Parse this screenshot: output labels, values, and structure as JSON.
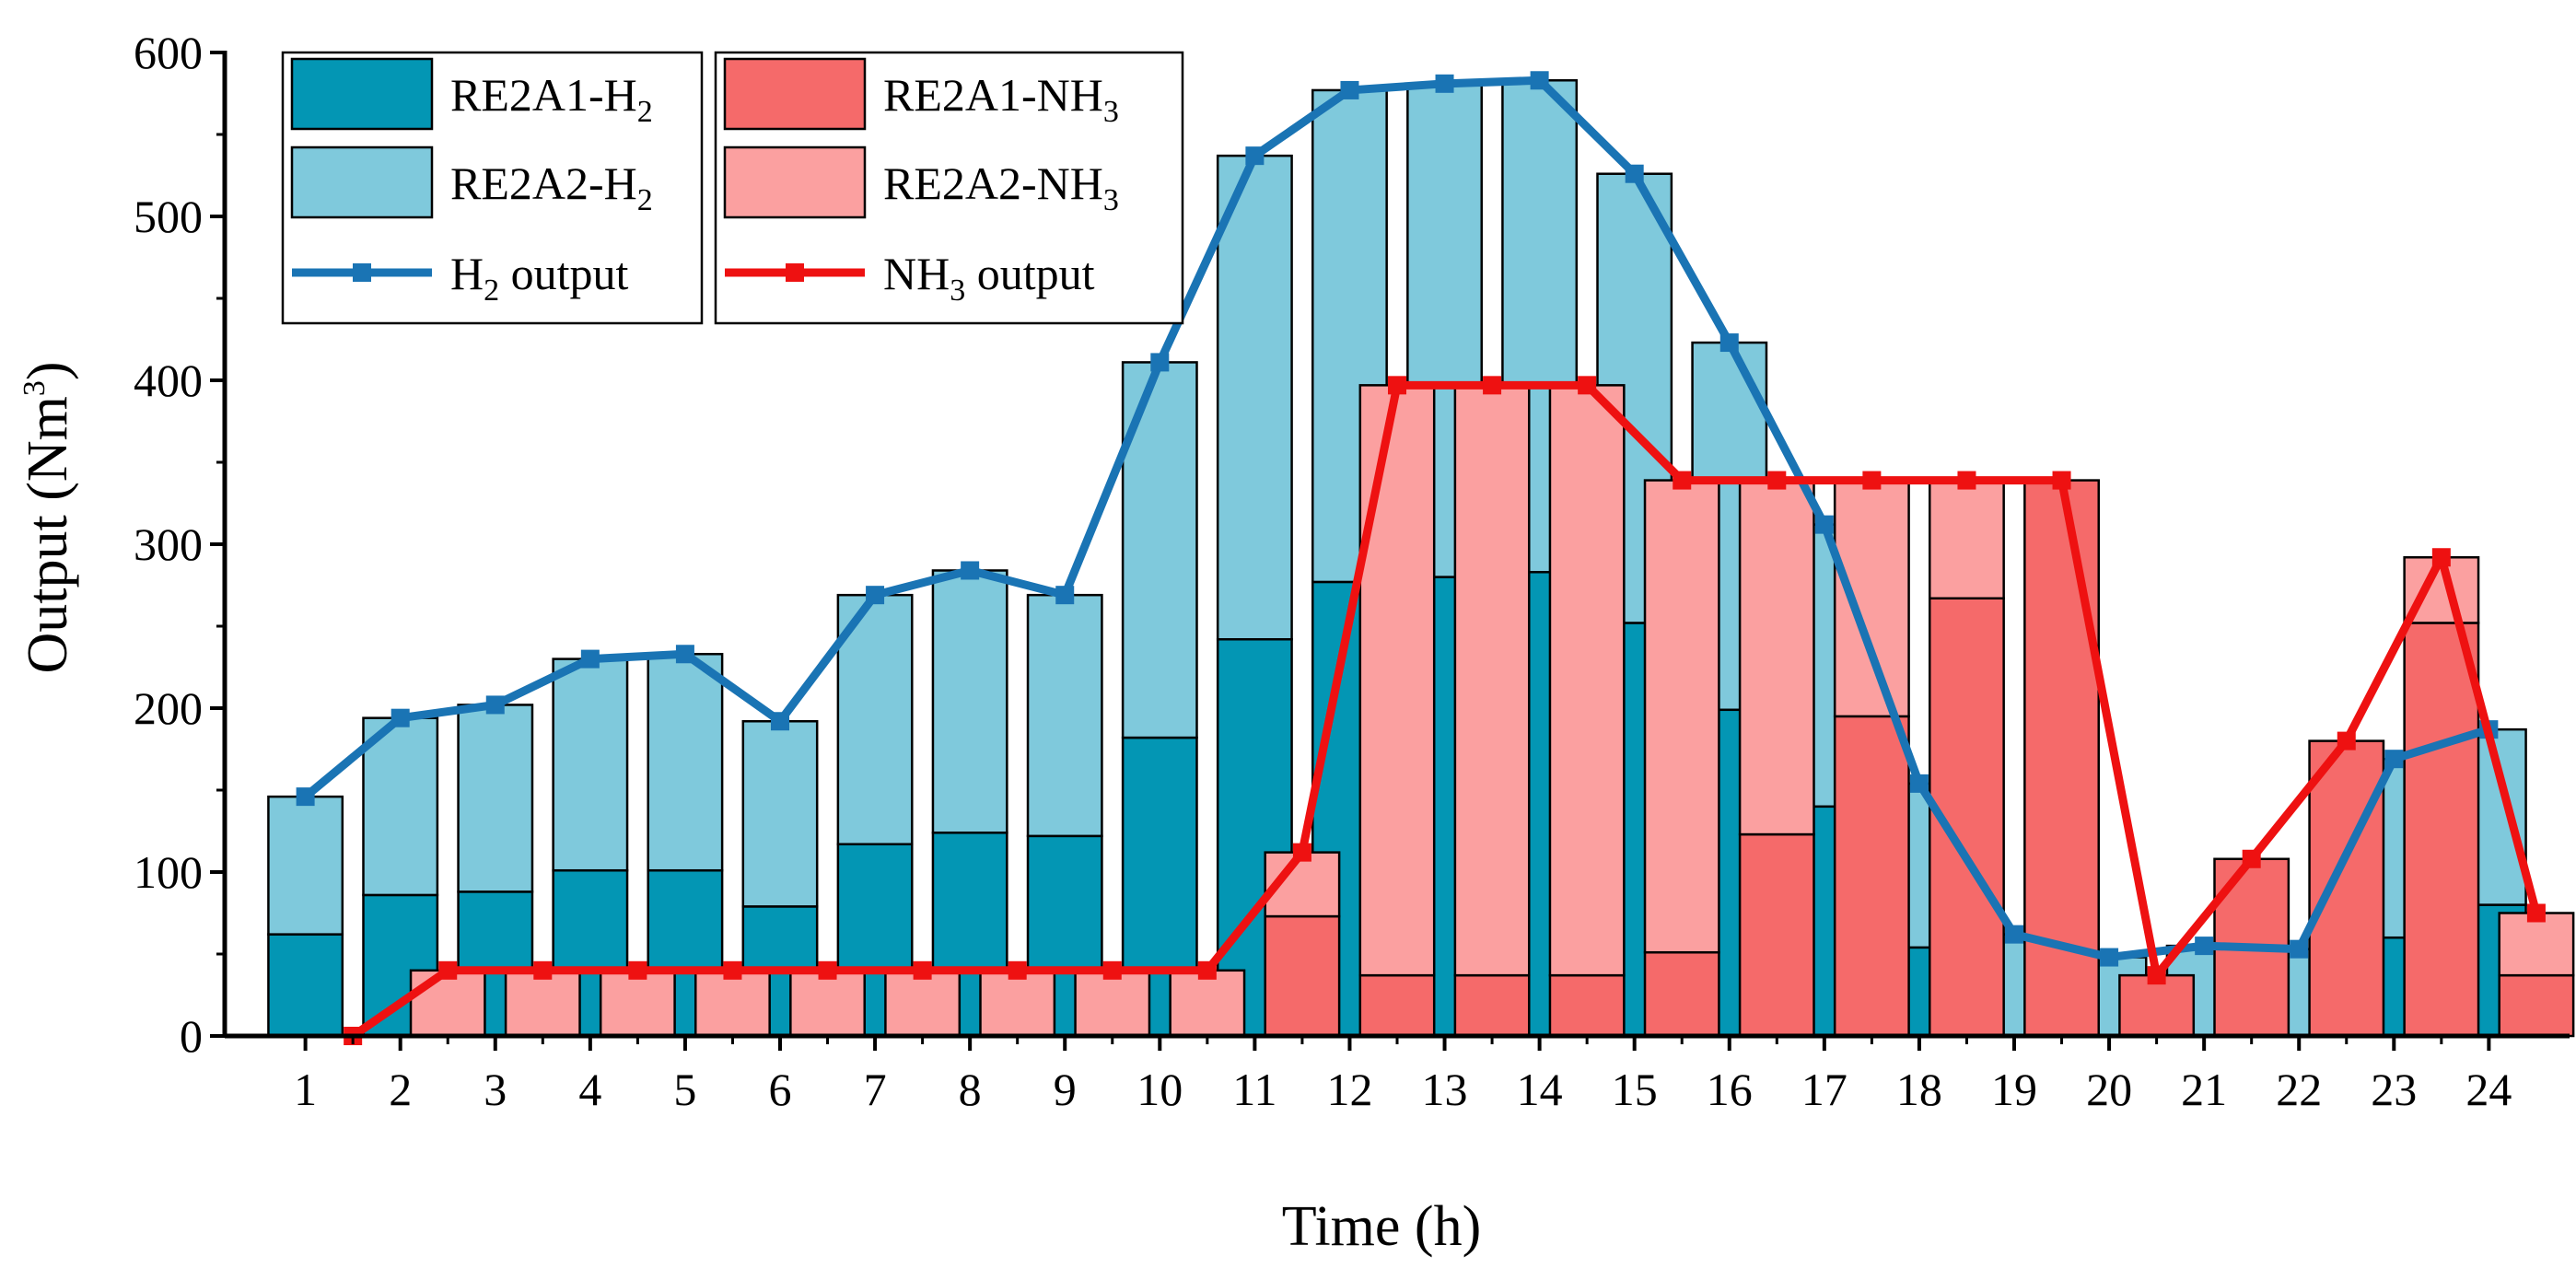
{
  "chart_data": {
    "type": "bar",
    "xlabel": "Time (h)",
    "ylabel_base": "Output (Nm",
    "ylabel_sup": "3",
    "ylabel_end": ")",
    "ylim": [
      0,
      600
    ],
    "yticks": [
      0,
      100,
      200,
      300,
      400,
      500,
      600
    ],
    "categories": [
      "1",
      "2",
      "3",
      "4",
      "5",
      "6",
      "7",
      "8",
      "9",
      "10",
      "11",
      "12",
      "13",
      "14",
      "15",
      "16",
      "17",
      "18",
      "19",
      "20",
      "21",
      "22",
      "23",
      "24"
    ],
    "grid": false,
    "legend_position": "top-left",
    "colors": {
      "RE2A1_H2": "#0396b4",
      "RE2A2_H2": "#7fc9dc",
      "RE2A1_NH3": "#f56a6a",
      "RE2A2_NH3": "#fba0a0",
      "H2_line": "#1a74b4",
      "NH3_line": "#ee1111"
    },
    "legend": [
      {
        "key": "RE2A1_H2",
        "base": "RE2A1-H",
        "sub": "2",
        "tail": ""
      },
      {
        "key": "RE2A1_NH3",
        "base": "RE2A1-NH",
        "sub": "3",
        "tail": ""
      },
      {
        "key": "RE2A2_H2",
        "base": "RE2A2-H",
        "sub": "2",
        "tail": ""
      },
      {
        "key": "RE2A2_NH3",
        "base": "RE2A2-NH",
        "sub": "3",
        "tail": ""
      },
      {
        "key": "H2_line",
        "base": "H",
        "sub": "2",
        "tail": " output"
      },
      {
        "key": "NH3_line",
        "base": "NH",
        "sub": "3",
        "tail": " output"
      }
    ],
    "hydrogen_bars": {
      "x": [
        1,
        2,
        3,
        4,
        5,
        6,
        7,
        8,
        9,
        10,
        11,
        12,
        13,
        14,
        15,
        16,
        17,
        18,
        19,
        20,
        21,
        22,
        23,
        24
      ],
      "RE2A1_H2": [
        62,
        86,
        88,
        101,
        101,
        79,
        117,
        124,
        122,
        182,
        242,
        277,
        280,
        283,
        252,
        199,
        140,
        54,
        0,
        0,
        0,
        0,
        60,
        80
      ],
      "RE2A2_H2": [
        84,
        108,
        114,
        129,
        132,
        113,
        152,
        160,
        147,
        229,
        295,
        300,
        301,
        300,
        274,
        224,
        172,
        100,
        62,
        48,
        55,
        53,
        109,
        107
      ]
    },
    "ammonia_bars": {
      "x": [
        2.5,
        3.5,
        4.5,
        5.5,
        6.5,
        7.5,
        8.5,
        9.5,
        10.5,
        11.5,
        12.5,
        13.5,
        14.5,
        15.5,
        16.5,
        17.5,
        18.5,
        19.5,
        20.5,
        21.5,
        22.5,
        23.5,
        24.5
      ],
      "RE2A1_NH3": [
        0,
        0,
        0,
        0,
        0,
        0,
        0,
        0,
        0,
        73,
        37,
        37,
        37,
        51,
        123,
        195,
        267,
        339,
        37,
        108,
        180,
        252,
        37
      ],
      "RE2A2_NH3": [
        40,
        40,
        40,
        40,
        40,
        40,
        40,
        40,
        40,
        39,
        360,
        360,
        360,
        288,
        216,
        144,
        72,
        0,
        0,
        0,
        0,
        40,
        38
      ]
    },
    "series": [
      {
        "name": "H2 output",
        "x": [
          1,
          2,
          3,
          4,
          5,
          6,
          7,
          8,
          9,
          10,
          11,
          12,
          13,
          14,
          15,
          16,
          17,
          18,
          19,
          20,
          21,
          22,
          23,
          24
        ],
        "values": [
          146,
          194,
          202,
          230,
          233,
          192,
          269,
          284,
          269,
          411,
          537,
          577,
          581,
          583,
          526,
          423,
          312,
          154,
          62,
          48,
          55,
          53,
          169,
          187
        ]
      },
      {
        "name": "NH3 output",
        "x": [
          1.5,
          2.5,
          3.5,
          4.5,
          5.5,
          6.5,
          7.5,
          8.5,
          9.5,
          10.5,
          11.5,
          12.5,
          13.5,
          14.5,
          15.5,
          16.5,
          17.5,
          18.5,
          19.5,
          20.5,
          21.5,
          22.5,
          23.5,
          24.5
        ],
        "values": [
          0,
          40,
          40,
          40,
          40,
          40,
          40,
          40,
          40,
          40,
          112,
          397,
          397,
          397,
          339,
          339,
          339,
          339,
          339,
          37,
          108,
          180,
          292,
          75
        ]
      }
    ]
  }
}
